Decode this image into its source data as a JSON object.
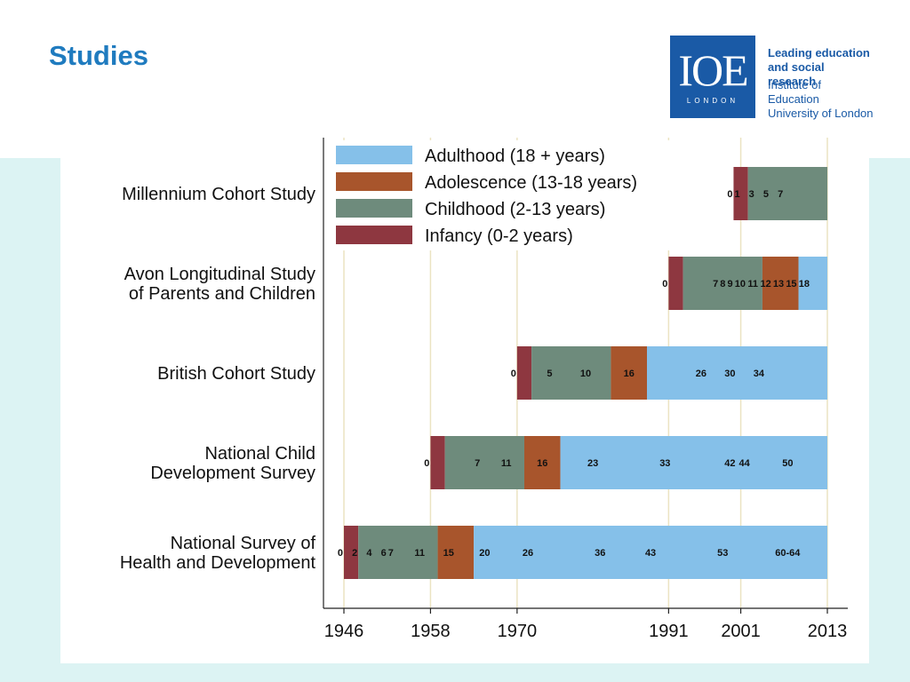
{
  "slide": {
    "title": "Studies"
  },
  "logo": {
    "mark": "IOE",
    "sub": "LONDON",
    "line1": "Leading education",
    "line2": "and social research",
    "line3": "Institute of Education",
    "line4": "University of London"
  },
  "chart_data": {
    "type": "bar",
    "orientation": "horizontal",
    "stacked": true,
    "title": "",
    "xlabel": "",
    "ylabel": "",
    "xlim": [
      1946,
      2013
    ],
    "x_ticks": [
      1946,
      1958,
      1970,
      1991,
      2001,
      2013
    ],
    "grid": "vertical",
    "legend_position": "top-left",
    "colors": {
      "Adulthood (18 + years)": "#85c0e9",
      "Adolescence (13-18 years)": "#a8552c",
      "Childhood (2-13 years)": "#6e8b7c",
      "Infancy (0-2 years)": "#8e3740"
    },
    "legend": [
      "Adulthood (18 + years)",
      "Adolescence (13-18 years)",
      "Childhood (2-13 years)",
      "Infancy (0-2 years)"
    ],
    "studies": [
      {
        "label_lines": [
          "Millennium Cohort Study"
        ],
        "birth_year": 2000,
        "segments": [
          {
            "phase": "Infancy (0-2 years)",
            "start": 2000,
            "end": 2002
          },
          {
            "phase": "Childhood (2-13 years)",
            "start": 2002,
            "end": 2013
          }
        ],
        "sweep_ages": [
          {
            "text": "0",
            "age": 0
          },
          {
            "text": "1",
            "age": 1
          },
          {
            "text": "3",
            "age": 3
          },
          {
            "text": "5",
            "age": 5
          },
          {
            "text": "7",
            "age": 7
          }
        ]
      },
      {
        "label_lines": [
          "Avon Longitudinal Study",
          "of Parents and Children"
        ],
        "birth_year": 1991,
        "segments": [
          {
            "phase": "Infancy (0-2 years)",
            "start": 1991,
            "end": 1993
          },
          {
            "phase": "Childhood (2-13 years)",
            "start": 1993,
            "end": 2004
          },
          {
            "phase": "Adolescence (13-18 years)",
            "start": 2004,
            "end": 2009
          },
          {
            "phase": "Adulthood (18 + years)",
            "start": 2009,
            "end": 2013
          }
        ],
        "sweep_ages": [
          {
            "text": "0",
            "age": 0
          },
          {
            "text": "7",
            "age": 7
          },
          {
            "text": "8",
            "age": 8
          },
          {
            "text": "9",
            "age": 9
          },
          {
            "text": "10",
            "age": 10
          },
          {
            "text": "11",
            "age": 11
          },
          {
            "text": "12",
            "age": 12
          },
          {
            "text": "13",
            "age": 13
          },
          {
            "text": "15",
            "age": 15
          },
          {
            "text": "18",
            "age": 18
          }
        ]
      },
      {
        "label_lines": [
          "British Cohort Study"
        ],
        "birth_year": 1970,
        "segments": [
          {
            "phase": "Infancy (0-2 years)",
            "start": 1970,
            "end": 1972
          },
          {
            "phase": "Childhood (2-13 years)",
            "start": 1972,
            "end": 1983
          },
          {
            "phase": "Adolescence (13-18 years)",
            "start": 1983,
            "end": 1988
          },
          {
            "phase": "Adulthood (18 + years)",
            "start": 1988,
            "end": 2013
          }
        ],
        "sweep_ages": [
          {
            "text": "0",
            "age": 0
          },
          {
            "text": "5",
            "age": 5
          },
          {
            "text": "10",
            "age": 10
          },
          {
            "text": "16",
            "age": 16
          },
          {
            "text": "26",
            "age": 26
          },
          {
            "text": "30",
            "age": 30
          },
          {
            "text": "34",
            "age": 34
          }
        ]
      },
      {
        "label_lines": [
          "National Child",
          "Development Survey"
        ],
        "birth_year": 1958,
        "segments": [
          {
            "phase": "Infancy (0-2 years)",
            "start": 1958,
            "end": 1960
          },
          {
            "phase": "Childhood (2-13 years)",
            "start": 1960,
            "end": 1971
          },
          {
            "phase": "Adolescence (13-18 years)",
            "start": 1971,
            "end": 1976
          },
          {
            "phase": "Adulthood (18 + years)",
            "start": 1976,
            "end": 2013
          }
        ],
        "sweep_ages": [
          {
            "text": "0",
            "age": 0
          },
          {
            "text": "7",
            "age": 7
          },
          {
            "text": "11",
            "age": 11
          },
          {
            "text": "16",
            "age": 16
          },
          {
            "text": "23",
            "age": 23
          },
          {
            "text": "33",
            "age": 33
          },
          {
            "text": "42",
            "age": 42
          },
          {
            "text": "44",
            "age": 44
          },
          {
            "text": "50",
            "age": 50
          }
        ]
      },
      {
        "label_lines": [
          "National Survey of",
          "Health and Development"
        ],
        "birth_year": 1946,
        "segments": [
          {
            "phase": "Infancy (0-2 years)",
            "start": 1946,
            "end": 1948
          },
          {
            "phase": "Childhood (2-13 years)",
            "start": 1948,
            "end": 1959
          },
          {
            "phase": "Adolescence (13-18 years)",
            "start": 1959,
            "end": 1964
          },
          {
            "phase": "Adulthood (18 + years)",
            "start": 1964,
            "end": 2013
          }
        ],
        "sweep_ages": [
          {
            "text": "0",
            "age": 0
          },
          {
            "text": "2",
            "age": 2
          },
          {
            "text": "4",
            "age": 4
          },
          {
            "text": "6",
            "age": 6
          },
          {
            "text": "7",
            "age": 7
          },
          {
            "text": "11",
            "age": 11
          },
          {
            "text": "15",
            "age": 15
          },
          {
            "text": "20",
            "age": 20
          },
          {
            "text": "26",
            "age": 26
          },
          {
            "text": "36",
            "age": 36
          },
          {
            "text": "43",
            "age": 43
          },
          {
            "text": "53",
            "age": 53
          },
          {
            "text": "60-64",
            "age": 62
          }
        ]
      }
    ]
  }
}
